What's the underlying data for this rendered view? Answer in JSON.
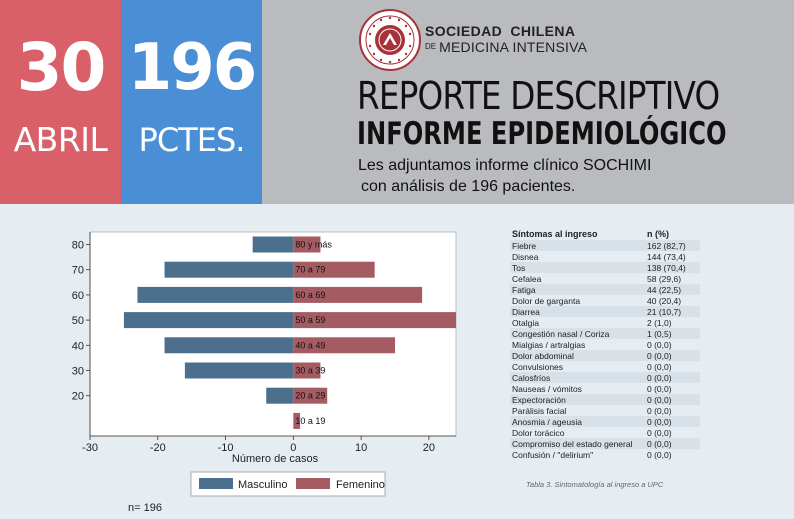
{
  "header": {
    "date_number": "30",
    "date_month": "ABRIL",
    "patients_number": "196",
    "patients_label": "PCTES.",
    "society_line1": "SOCIEDAD CHILENA",
    "society_de": "DE",
    "society_line2": "MEDICINA INTENSIVA",
    "title": "REPORTE DESCRIPTIVO",
    "subtitle": "INFORME EPIDEMIOLÓGICO",
    "description_line1": "Les adjuntamos informe clínico SOCHIMI",
    "description_line2": "con análisis de 196 pacientes.",
    "colors": {
      "date_tile": "#d95f68",
      "count_tile": "#4a8fd6",
      "banner": "#b9bbbe",
      "seal": "#a8323a"
    }
  },
  "chart_data": {
    "type": "bar",
    "orientation": "horizontal-population-pyramid",
    "categories": [
      "80 y más",
      "70 a 79",
      "60 a 69",
      "50 a 59",
      "40 a 49",
      "30 a 39",
      "20 a 29",
      "10 a 19"
    ],
    "y_ticks": [
      "80",
      "70",
      "60",
      "50",
      "40",
      "30",
      "20"
    ],
    "series": [
      {
        "name": "Masculino",
        "color": "#4c6f8e",
        "values": [
          6,
          19,
          23,
          25,
          19,
          16,
          4,
          0
        ]
      },
      {
        "name": "Femenino",
        "color": "#a55b62",
        "values": [
          4,
          12,
          19,
          24,
          15,
          4,
          5,
          1
        ]
      }
    ],
    "xlabel": "Número de casos",
    "x_ticks": [
      "-30",
      "-20",
      "-10",
      "0",
      "10",
      "20"
    ],
    "xlim": [
      -30,
      24
    ],
    "legend_position": "bottom",
    "note": "n= 196"
  },
  "table": {
    "header": [
      "Síntomas al ingreso",
      "n (%)"
    ],
    "rows": [
      [
        "Fiebre",
        "162 (82,7)"
      ],
      [
        "Disnea",
        "144 (73,4)"
      ],
      [
        "Tos",
        "138 (70,4)"
      ],
      [
        "Cefalea",
        "58 (29,6)"
      ],
      [
        "Fatiga",
        "44 (22,5)"
      ],
      [
        "Dolor de garganta",
        "40 (20,4)"
      ],
      [
        "Diarrea",
        "21 (10,7)"
      ],
      [
        "Otalgia",
        "2 (1,0)"
      ],
      [
        "Congestión nasal / Coriza",
        "1 (0,5)"
      ],
      [
        "Mialgias / artralgias",
        "0 (0,0)"
      ],
      [
        "Dolor abdominal",
        "0 (0,0)"
      ],
      [
        "Convulsiones",
        "0 (0,0)"
      ],
      [
        "Calosfríos",
        "0 (0,0)"
      ],
      [
        "Nauseas / vómitos",
        "0 (0,0)"
      ],
      [
        "Expectoración",
        "0 (0,0)"
      ],
      [
        "Parálisis facial",
        "0 (0,0)"
      ],
      [
        "Anosmia / ageusia",
        "0 (0,0)"
      ],
      [
        "Dolor torácico",
        "0 (0,0)"
      ],
      [
        "Compromiso del estado general",
        "0 (0,0)"
      ],
      [
        "Confusión / \"delirium\"",
        "0 (0,0)"
      ]
    ],
    "caption": "Tabla 3. Sintomatología al ingreso a UPC"
  }
}
